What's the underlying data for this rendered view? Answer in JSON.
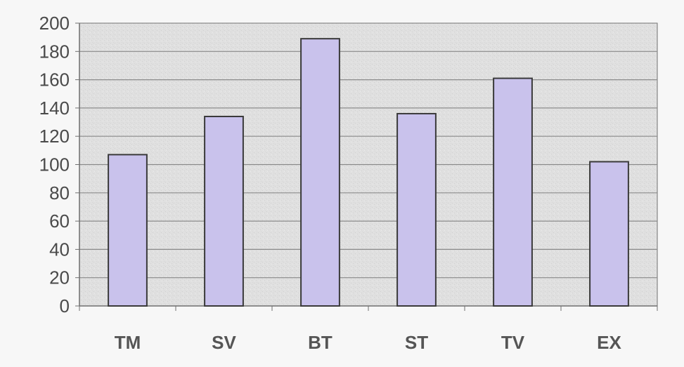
{
  "chart_data": {
    "type": "bar",
    "categories": [
      "TM",
      "SV",
      "BT",
      "ST",
      "TV",
      "EX"
    ],
    "values": [
      107,
      134,
      189,
      136,
      161,
      102
    ],
    "ylim": [
      0,
      200
    ],
    "yticks": [
      0,
      20,
      40,
      60,
      80,
      100,
      120,
      140,
      160,
      180,
      200
    ],
    "grid": true,
    "legend": "none",
    "title": "",
    "xlabel": "",
    "ylabel": "",
    "colors": {
      "bar_fill": "#c9c2ec",
      "bar_stroke": "#3a3a3a",
      "plot_background": "#dedede",
      "gridline": "#8a8a8a",
      "axis": "#6f6f6f"
    }
  }
}
